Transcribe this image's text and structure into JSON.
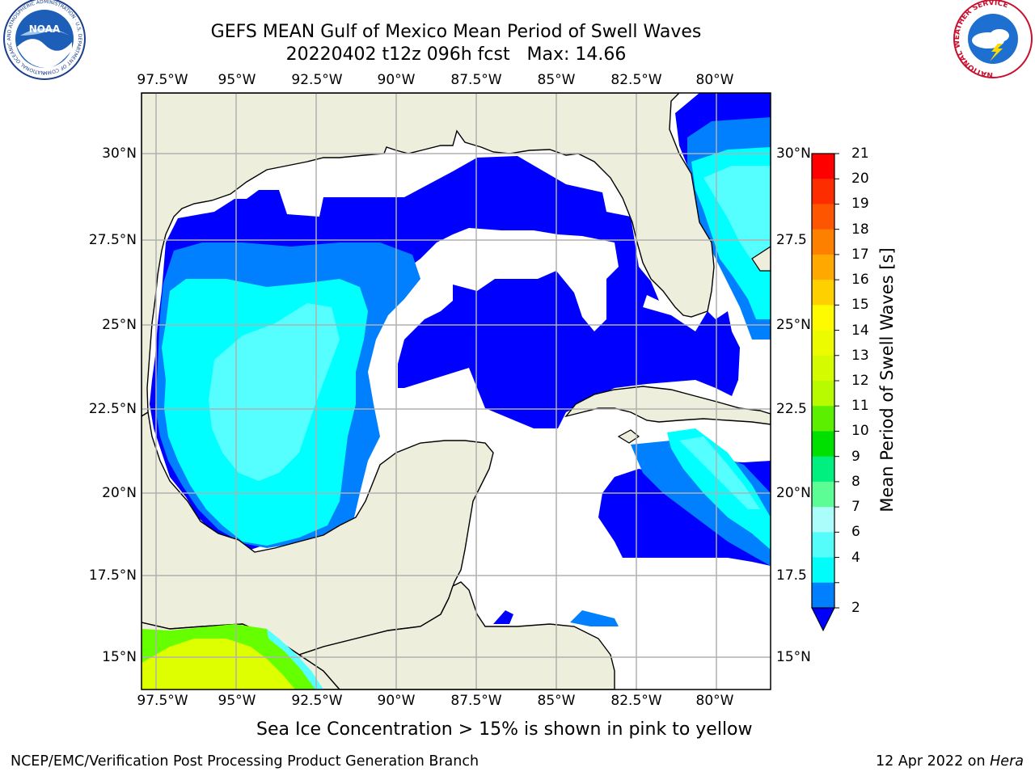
{
  "header": {
    "title_line1": "GEFS MEAN Gulf of Mexico Mean Period of Swell Waves",
    "title_line2": "20220402 t12z 096h fcst   Max: 14.66"
  },
  "logos": {
    "noaa_text": "NOAA",
    "noaa_ring_text": "NATIONAL OCEANIC AND ATMOSPHERIC ADMINISTRATION · U.S. DEPARTMENT OF COMMERCE",
    "nws_ring_text": "NATIONAL WEATHER SERVICE"
  },
  "axes": {
    "lon_ticks": [
      "97.5°W",
      "95°W",
      "92.5°W",
      "90°W",
      "87.5°W",
      "85°W",
      "82.5°W",
      "80°W"
    ],
    "lat_ticks_left": [
      "30°N",
      "27.5°N",
      "25°N",
      "22.5°N",
      "20°N",
      "17.5°N",
      "15°N"
    ],
    "lat_ticks_right": [
      "30°N",
      "27.5",
      "25°N",
      "22.5",
      "20°N",
      "17.5",
      "15°N"
    ],
    "lon_range": [
      -98.1,
      -78.4
    ],
    "lat_range": [
      14.0,
      31.9
    ]
  },
  "colorbar": {
    "label": "Mean Period of Swell Waves [s]",
    "ticks": [
      "21",
      "20",
      "19",
      "18",
      "17",
      "16",
      "15",
      "14",
      "13",
      "12",
      "11",
      "10",
      "9",
      "8",
      "7",
      "6",
      "4",
      "2"
    ],
    "colors": [
      "#fe0000",
      "#fe2d00",
      "#fe5500",
      "#fe8000",
      "#fea800",
      "#fed000",
      "#fefb00",
      "#ecfb00",
      "#d4fb00",
      "#b8fb00",
      "#5cf000",
      "#00e000",
      "#00f080",
      "#5dfd96",
      "#aafdfa",
      "#55fdfa",
      "#00fdfa",
      "#0080fe"
    ],
    "extend_color": "#0000fe"
  },
  "map_colors": {
    "land": "#eeeedd",
    "ocean_missing": "#ffffff",
    "period_2_4": "#0000ff",
    "period_4_6": "#0080ff",
    "period_6_7": "#00ffff",
    "period_7_8": "#55ffff",
    "ice_low": "#66ff00",
    "ice_high": "#ddff00"
  },
  "footer": {
    "sea_ice_note": "Sea Ice Concentration > 15% is shown in pink to yellow",
    "credit_left": "NCEP/EMC/Verification Post Processing Product Generation Branch",
    "credit_right_date": "12 Apr 2022 on ",
    "credit_right_host": "Hera"
  }
}
